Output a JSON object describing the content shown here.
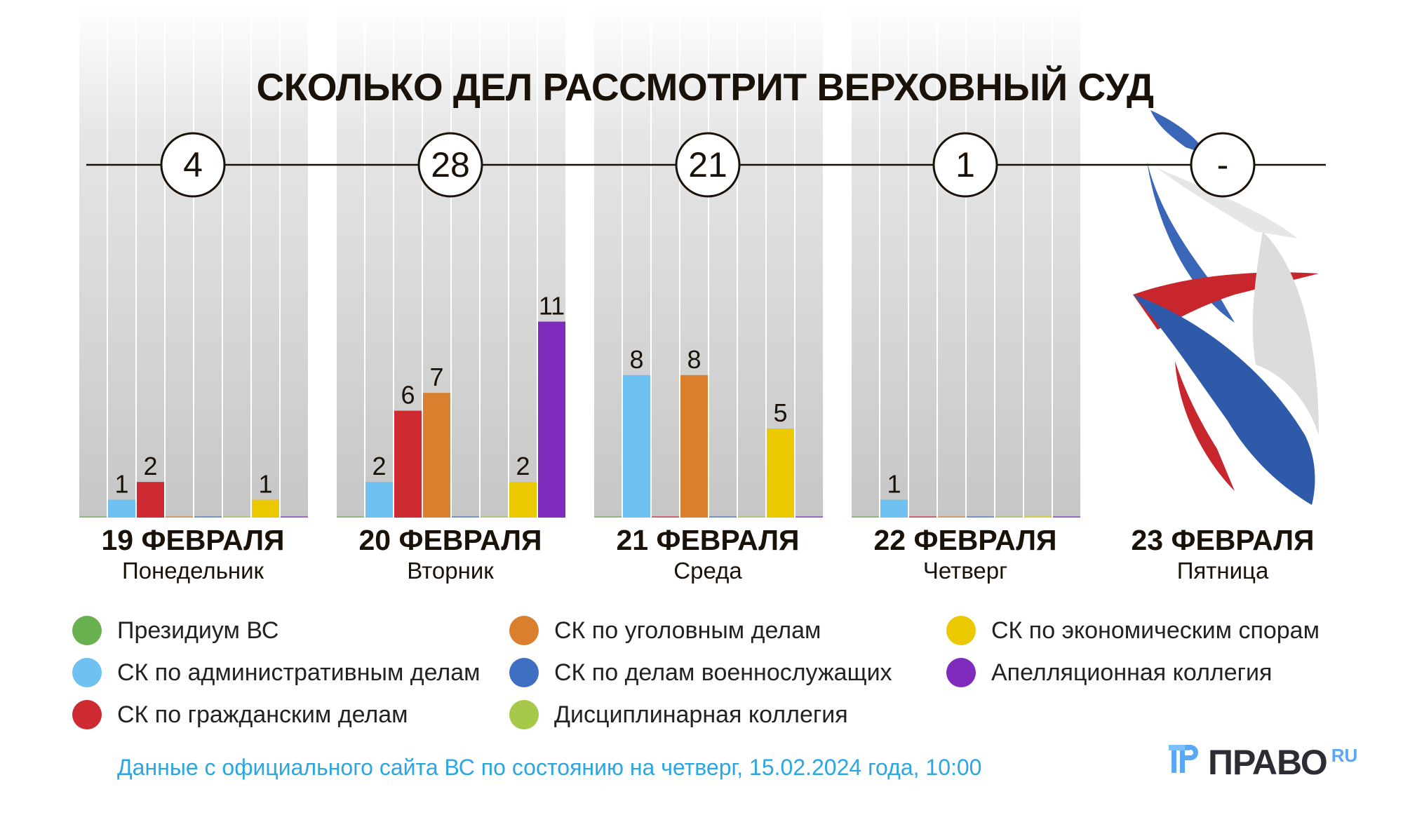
{
  "chart_data": {
    "type": "bar",
    "title": "СКОЛЬКО ДЕЛ РАССМОТРИТ ВЕРХОВНЫЙ СУД",
    "categories": [
      "Президиум ВС",
      "СК по административным делам",
      "СК по гражданским делам",
      "СК по уголовным делам",
      "СК по делам военнослужащих",
      "Дисциплинарная коллегия",
      "СК по экономическим спорам",
      "Апелляционная коллегия"
    ],
    "colors": [
      "#69b04f",
      "#6ec1f1",
      "#cd2a31",
      "#d97f2d",
      "#3f6fc1",
      "#a7c94b",
      "#ebc800",
      "#7f2bbe"
    ],
    "groups": [
      {
        "date": "19 ФЕВРАЛЯ",
        "weekday": "Понедельник",
        "total": "4",
        "values": [
          0,
          1,
          2,
          0,
          0,
          0,
          1,
          0
        ]
      },
      {
        "date": "20 ФЕВРАЛЯ",
        "weekday": "Вторник",
        "total": "28",
        "values": [
          0,
          2,
          6,
          7,
          0,
          0,
          2,
          11
        ]
      },
      {
        "date": "21 ФЕВРАЛЯ",
        "weekday": "Среда",
        "total": "21",
        "values": [
          0,
          8,
          0,
          8,
          0,
          0,
          5,
          0
        ]
      },
      {
        "date": "22 ФЕВРАЛЯ",
        "weekday": "Четверг",
        "total": "1",
        "values": [
          0,
          1,
          0,
          0,
          0,
          0,
          0,
          0
        ]
      },
      {
        "date": "23 ФЕВРАЛЯ",
        "weekday": "Пятница",
        "total": "-",
        "values": null
      }
    ],
    "ylim": [
      0,
      11
    ],
    "legend_placement": "bottom"
  },
  "footer": "Данные с официального сайта ВС по состоянию на четверг, 15.02.2024 года, 10:00",
  "logo": {
    "brand": "ПРАВО",
    "suffix": "RU"
  }
}
